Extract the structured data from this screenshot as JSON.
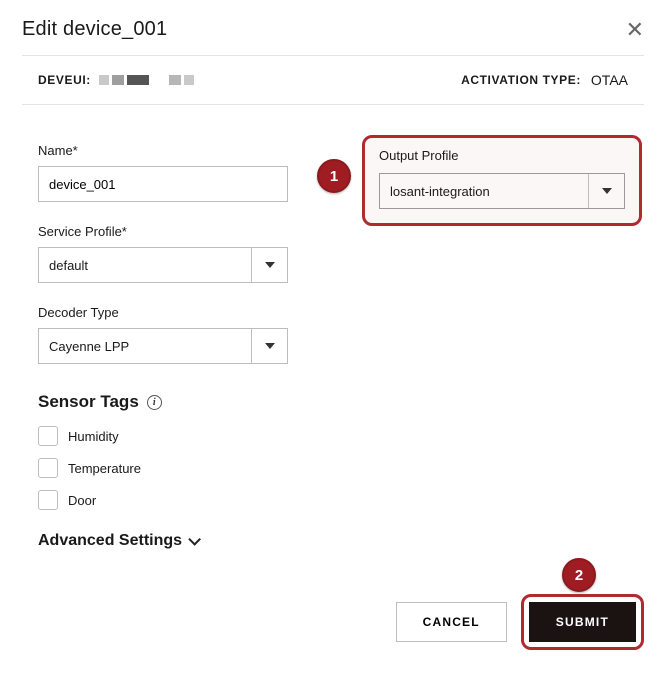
{
  "header": {
    "title": "Edit device_001"
  },
  "meta": {
    "deveui_label": "DEVEUI:",
    "activation_type_label": "ACTIVATION TYPE:",
    "activation_type_value": "OTAA"
  },
  "fields": {
    "name": {
      "label": "Name*",
      "value": "device_001"
    },
    "service_profile": {
      "label": "Service Profile*",
      "value": "default"
    },
    "decoder_type": {
      "label": "Decoder Type",
      "value": "Cayenne LPP"
    },
    "output_profile": {
      "label": "Output Profile",
      "value": "losant-integration"
    }
  },
  "sensor_tags": {
    "heading": "Sensor Tags",
    "items": [
      "Humidity",
      "Temperature",
      "Door"
    ]
  },
  "advanced": {
    "label": "Advanced Settings"
  },
  "buttons": {
    "cancel": "CANCEL",
    "submit": "SUBMIT"
  },
  "callouts": {
    "one": "1",
    "two": "2"
  },
  "styling": {
    "highlight_border_color": "#b02a2f",
    "callout_bg": "#9f1d22",
    "primary_btn_bg": "#1a1311",
    "border_color": "#bdbdbd",
    "divider_color": "#e4e4e4",
    "text_color": "#1a1a1a"
  }
}
